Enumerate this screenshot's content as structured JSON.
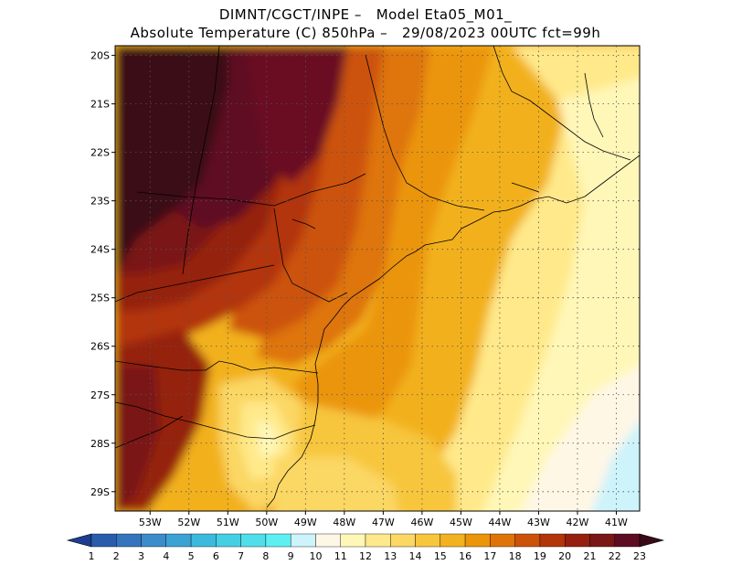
{
  "header": {
    "line1": "DIMNT/CGCT/INPE –   Model Eta05_M01_",
    "line2": "Absolute Temperature (C) 850hPa –   29/08/2023 00UTC fct=99h"
  },
  "map": {
    "lon_min": -53.9,
    "lon_max": -40.4,
    "lat_min": -29.4,
    "lat_max": -19.8,
    "lat_labels": [
      "20S",
      "21S",
      "22S",
      "23S",
      "24S",
      "25S",
      "26S",
      "27S",
      "28S",
      "29S"
    ],
    "lat_values": [
      -20,
      -21,
      -22,
      -23,
      -24,
      -25,
      -26,
      -27,
      -28,
      -29
    ],
    "lon_labels": [
      "53W",
      "52W",
      "51W",
      "50W",
      "49W",
      "48W",
      "47W",
      "46W",
      "45W",
      "44W",
      "43W",
      "42W",
      "41W"
    ],
    "lon_values": [
      -53,
      -52,
      -51,
      -50,
      -49,
      -48,
      -47,
      -46,
      -45,
      -44,
      -43,
      -42,
      -41
    ]
  },
  "colorbar": {
    "labels": [
      "1",
      "2",
      "3",
      "4",
      "5",
      "6",
      "7",
      "8",
      "9",
      "10",
      "11",
      "12",
      "13",
      "14",
      "15",
      "16",
      "17",
      "18",
      "19",
      "20",
      "21",
      "22",
      "23"
    ],
    "colors": [
      "#1e3d8f",
      "#2a5cab",
      "#3475bd",
      "#3b8cca",
      "#3aa3d4",
      "#3cbadd",
      "#45cfe4",
      "#4fdfea",
      "#5cf0f2",
      "#cdf3fb",
      "#fff7e6",
      "#fff7b8",
      "#ffe98a",
      "#fbd764",
      "#f7c63d",
      "#f2b11e",
      "#eb950a",
      "#de7408",
      "#cc5208",
      "#b2360a",
      "#952010",
      "#7a1615",
      "#5e0c23",
      "#3a0a18"
    ]
  },
  "colors": {
    "c11": "#fff7e6",
    "c12": "#fff7b8",
    "c13": "#ffe98a",
    "c14": "#fbd764",
    "c15": "#f7c63d",
    "c16": "#f2b11e",
    "c17": "#eb950a",
    "c18": "#de7408",
    "c19": "#cc5208",
    "c20": "#b2360a",
    "c21": "#952010",
    "c22": "#7a1615",
    "c23": "#5e0c23",
    "c24": "#3a0a18",
    "c10": "#cdf3fb"
  }
}
